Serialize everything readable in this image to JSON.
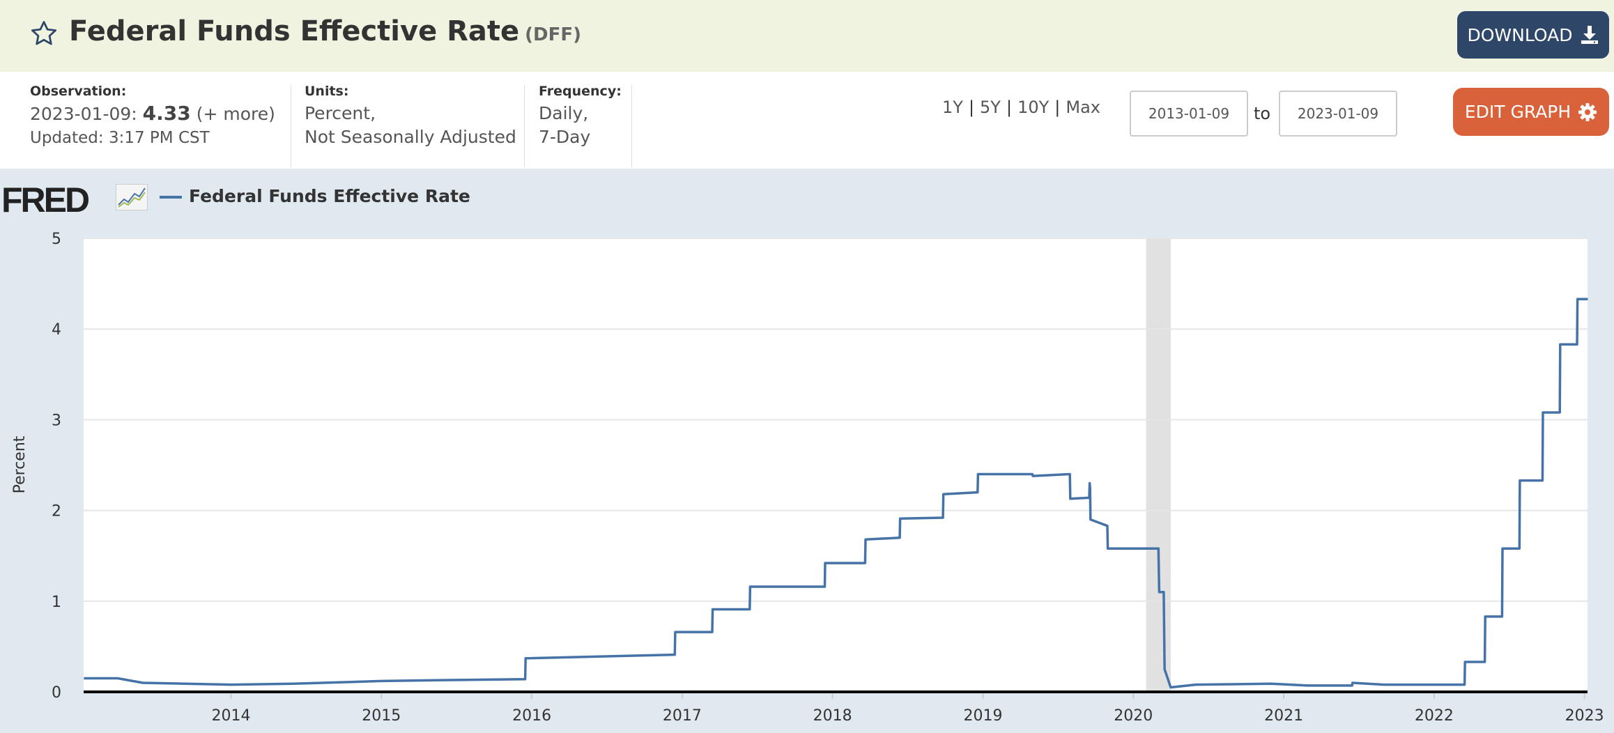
{
  "header": {
    "title": "Federal Funds Effective Rate",
    "series_id": "(DFF)",
    "download_label": "DOWNLOAD",
    "star_icon": "star-icon",
    "download_icon": "download-icon"
  },
  "meta": {
    "observation_label": "Observation:",
    "observation_date": "2023-01-09:",
    "observation_value": "4.33",
    "observation_more": "(+ more)",
    "updated": "Updated: 3:17 PM CST",
    "units_label": "Units:",
    "units_line1": "Percent,",
    "units_line2": "Not Seasonally Adjusted",
    "frequency_label": "Frequency:",
    "frequency_line1": "Daily,",
    "frequency_line2": "7-Day"
  },
  "controls": {
    "ranges": [
      "1Y",
      "5Y",
      "10Y",
      "Max"
    ],
    "start_date": "2013-01-09",
    "to_label": "to",
    "end_date": "2023-01-09",
    "edit_label": "EDIT GRAPH",
    "edit_icon": "gear-icon"
  },
  "brand": {
    "logo": "FRED"
  },
  "colors": {
    "series": "#4572a7",
    "recession": "#e1e1e1",
    "download_bg": "#2e4769",
    "edit_bg": "#d9623b"
  },
  "chart_data": {
    "type": "line",
    "legend": "Federal Funds Effective Rate",
    "ylabel": "Percent",
    "ylim": [
      0,
      5
    ],
    "yticks": [
      "0",
      "1",
      "2",
      "3",
      "4",
      "5"
    ],
    "xlim": [
      2013.02,
      2023.02
    ],
    "xticks": [
      "2014",
      "2015",
      "2016",
      "2017",
      "2018",
      "2019",
      "2020",
      "2021",
      "2022",
      "2023"
    ],
    "grid": true,
    "recession": {
      "start": "2020-02",
      "end": "2020-04"
    },
    "series": [
      {
        "name": "Federal Funds Effective Rate",
        "points": [
          [
            "2013-01-09",
            0.15
          ],
          [
            "2013-04-01",
            0.15
          ],
          [
            "2013-06-01",
            0.1
          ],
          [
            "2014-01-01",
            0.08
          ],
          [
            "2014-06-01",
            0.09
          ],
          [
            "2015-01-01",
            0.12
          ],
          [
            "2015-06-01",
            0.13
          ],
          [
            "2015-12-16",
            0.14
          ],
          [
            "2015-12-17",
            0.37
          ],
          [
            "2016-12-14",
            0.41
          ],
          [
            "2016-12-15",
            0.66
          ],
          [
            "2017-03-15",
            0.66
          ],
          [
            "2017-03-16",
            0.91
          ],
          [
            "2017-06-14",
            0.91
          ],
          [
            "2017-06-15",
            1.16
          ],
          [
            "2017-12-13",
            1.16
          ],
          [
            "2017-12-14",
            1.42
          ],
          [
            "2018-03-21",
            1.42
          ],
          [
            "2018-03-22",
            1.68
          ],
          [
            "2018-06-13",
            1.7
          ],
          [
            "2018-06-14",
            1.91
          ],
          [
            "2018-09-26",
            1.92
          ],
          [
            "2018-09-27",
            2.18
          ],
          [
            "2018-12-19",
            2.2
          ],
          [
            "2018-12-20",
            2.4
          ],
          [
            "2019-05-01",
            2.4
          ],
          [
            "2019-05-02",
            2.38
          ],
          [
            "2019-07-31",
            2.4
          ],
          [
            "2019-08-01",
            2.13
          ],
          [
            "2019-09-16",
            2.14
          ],
          [
            "2019-09-17",
            2.3
          ],
          [
            "2019-09-18",
            2.25
          ],
          [
            "2019-09-19",
            1.9
          ],
          [
            "2019-10-30",
            1.83
          ],
          [
            "2019-10-31",
            1.58
          ],
          [
            "2020-03-02",
            1.58
          ],
          [
            "2020-03-04",
            1.1
          ],
          [
            "2020-03-15",
            1.1
          ],
          [
            "2020-03-17",
            0.25
          ],
          [
            "2020-04-01",
            0.05
          ],
          [
            "2020-06-01",
            0.08
          ],
          [
            "2020-12-01",
            0.09
          ],
          [
            "2021-03-01",
            0.07
          ],
          [
            "2021-06-16",
            0.07
          ],
          [
            "2021-06-17",
            0.1
          ],
          [
            "2021-09-01",
            0.08
          ],
          [
            "2022-03-16",
            0.08
          ],
          [
            "2022-03-17",
            0.33
          ],
          [
            "2022-05-04",
            0.33
          ],
          [
            "2022-05-05",
            0.83
          ],
          [
            "2022-06-15",
            0.83
          ],
          [
            "2022-06-16",
            1.58
          ],
          [
            "2022-07-27",
            1.58
          ],
          [
            "2022-07-28",
            2.33
          ],
          [
            "2022-09-21",
            2.33
          ],
          [
            "2022-09-22",
            3.08
          ],
          [
            "2022-11-02",
            3.08
          ],
          [
            "2022-11-03",
            3.83
          ],
          [
            "2022-12-14",
            3.83
          ],
          [
            "2022-12-15",
            4.33
          ],
          [
            "2023-01-09",
            4.33
          ]
        ]
      }
    ]
  }
}
